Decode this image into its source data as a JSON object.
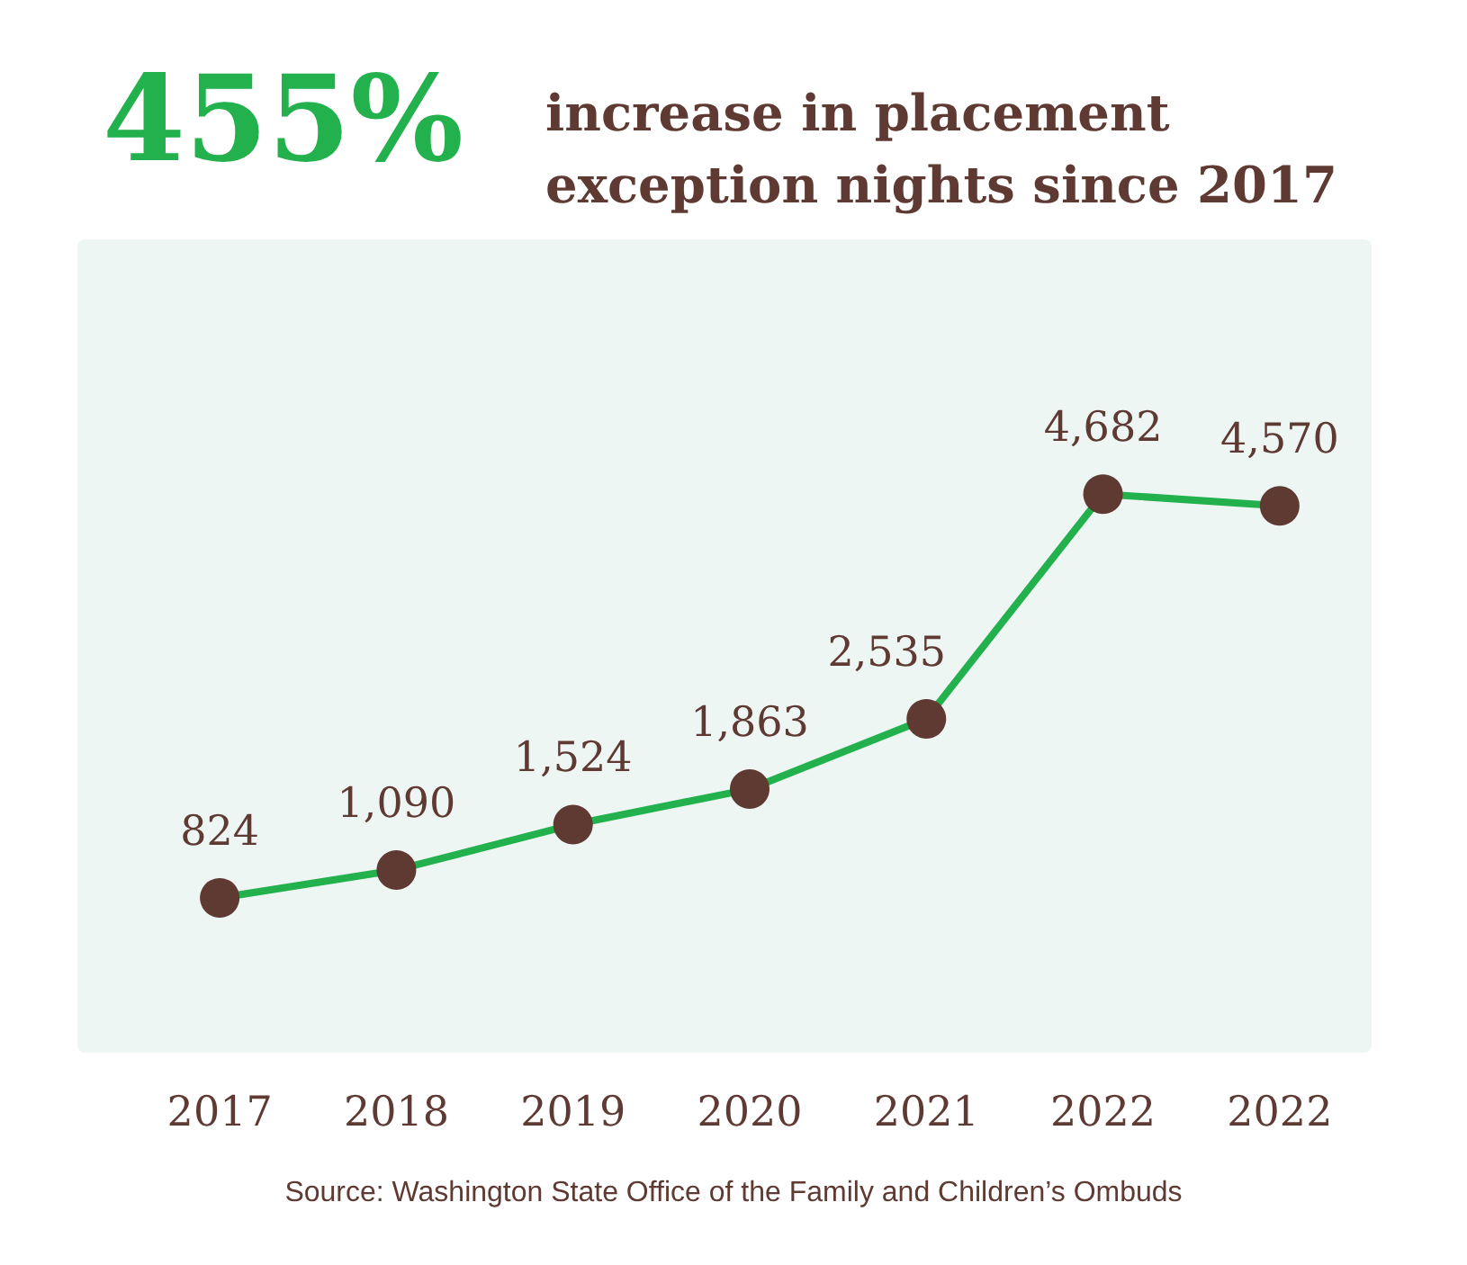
{
  "chart_data": {
    "type": "line",
    "title": "455%",
    "subtitle": "increase in placement exception nights since 2017",
    "categories": [
      "2017",
      "2018",
      "2019",
      "2020",
      "2021",
      "2022",
      "2022"
    ],
    "series": [
      {
        "color": "#22b14c",
        "values": [
          824,
          1090,
          1524,
          1863,
          2535,
          4682,
          4570
        ],
        "value_labels": [
          "824",
          "1,090",
          "1,524",
          "1,863",
          "2,535",
          "4,682",
          "4,570"
        ]
      }
    ],
    "marker": "circle",
    "line_style": "solid",
    "grid": false,
    "tick_labels": "x",
    "annotations": [
      "Source: Washington State Office of the Family and Children’s Ombuds"
    ]
  }
}
